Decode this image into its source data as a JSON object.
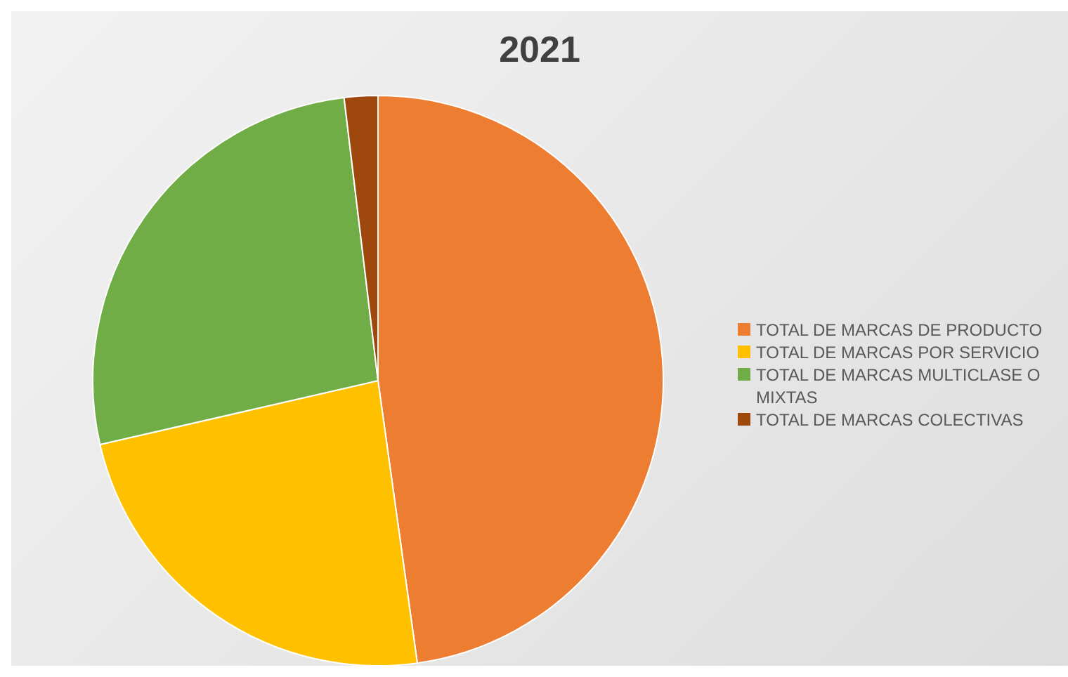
{
  "chart_data": {
    "type": "pie",
    "title": "2021",
    "categories": [
      "TOTAL DE MARCAS DE PRODUCTO",
      "TOTAL DE MARCAS POR SERVICIO",
      "TOTAL DE MARCAS MULTICLASE O MIXTAS",
      "TOTAL DE MARCAS COLECTIVAS"
    ],
    "values": [
      47.8,
      23.6,
      26.7,
      1.9
    ],
    "colors": [
      "#ed7d31",
      "#ffc000",
      "#70ad47",
      "#9e480e"
    ],
    "legend": "right"
  }
}
